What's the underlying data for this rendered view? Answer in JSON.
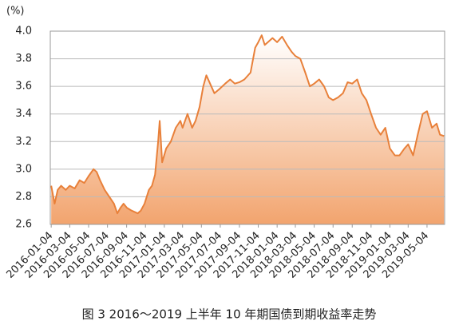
{
  "chart_data": {
    "type": "line",
    "title": "图 3 2016～2019 上半年 10 年期国债到期收益率走势",
    "y_label": "(%)",
    "color": "#e8803a",
    "grid": true,
    "x": [
      "2016-01-04",
      "2016-01-15",
      "2016-01-25",
      "2016-02-05",
      "2016-02-20",
      "2016-03-04",
      "2016-03-20",
      "2016-04-05",
      "2016-04-20",
      "2016-05-04",
      "2016-05-20",
      "2016-05-30",
      "2016-06-10",
      "2016-06-25",
      "2016-07-10",
      "2016-07-25",
      "2016-08-05",
      "2016-08-15",
      "2016-08-25",
      "2016-09-05",
      "2016-09-20",
      "2016-10-10",
      "2016-10-20",
      "2016-11-01",
      "2016-11-15",
      "2016-11-25",
      "2016-12-05",
      "2016-12-15",
      "2016-12-20",
      "2016-12-28",
      "2017-01-10",
      "2017-01-25",
      "2017-02-10",
      "2017-02-25",
      "2017-03-04",
      "2017-03-20",
      "2017-04-04",
      "2017-04-15",
      "2017-04-28",
      "2017-05-10",
      "2017-05-20",
      "2017-06-01",
      "2017-06-15",
      "2017-07-01",
      "2017-07-20",
      "2017-08-05",
      "2017-08-20",
      "2017-09-04",
      "2017-09-20",
      "2017-10-10",
      "2017-10-25",
      "2017-11-04",
      "2017-11-15",
      "2017-11-25",
      "2017-12-05",
      "2017-12-20",
      "2018-01-04",
      "2018-01-20",
      "2018-02-05",
      "2018-02-20",
      "2018-03-04",
      "2018-03-20",
      "2018-04-05",
      "2018-04-20",
      "2018-05-04",
      "2018-05-20",
      "2018-06-05",
      "2018-06-20",
      "2018-07-04",
      "2018-07-20",
      "2018-08-05",
      "2018-08-20",
      "2018-09-04",
      "2018-09-20",
      "2018-10-05",
      "2018-10-20",
      "2018-11-04",
      "2018-11-20",
      "2018-12-05",
      "2018-12-20",
      "2019-01-04",
      "2019-01-20",
      "2019-02-04",
      "2019-02-20",
      "2019-03-04",
      "2019-03-20",
      "2019-04-04",
      "2019-04-20",
      "2019-05-04",
      "2019-05-20",
      "2019-06-04",
      "2019-06-15",
      "2019-06-28"
    ],
    "values": [
      2.88,
      2.75,
      2.85,
      2.88,
      2.85,
      2.88,
      2.86,
      2.92,
      2.9,
      2.95,
      3.0,
      2.98,
      2.92,
      2.85,
      2.8,
      2.75,
      2.68,
      2.72,
      2.75,
      2.72,
      2.7,
      2.68,
      2.7,
      2.75,
      2.85,
      2.88,
      2.96,
      3.2,
      3.35,
      3.05,
      3.15,
      3.2,
      3.3,
      3.35,
      3.3,
      3.4,
      3.3,
      3.35,
      3.45,
      3.6,
      3.68,
      3.62,
      3.55,
      3.58,
      3.62,
      3.65,
      3.62,
      3.63,
      3.65,
      3.7,
      3.88,
      3.92,
      3.97,
      3.9,
      3.92,
      3.95,
      3.92,
      3.96,
      3.9,
      3.85,
      3.82,
      3.8,
      3.7,
      3.6,
      3.62,
      3.65,
      3.6,
      3.52,
      3.5,
      3.52,
      3.55,
      3.63,
      3.62,
      3.65,
      3.55,
      3.5,
      3.4,
      3.3,
      3.25,
      3.3,
      3.15,
      3.1,
      3.1,
      3.15,
      3.18,
      3.1,
      3.25,
      3.4,
      3.42,
      3.3,
      3.33,
      3.25,
      3.24
    ],
    "xlim": [
      "2016-01-01",
      "2019-06-30"
    ],
    "xticks": [
      "2016-01-04",
      "2016-03-04",
      "2016-05-04",
      "2016-07-04",
      "2016-09-04",
      "2016-11-04",
      "2017-01-04",
      "2017-03-04",
      "2017-05-04",
      "2017-07-04",
      "2017-09-04",
      "2017-11-04",
      "2018-01-04",
      "2018-03-04",
      "2018-05-04",
      "2018-07-04",
      "2018-09-04",
      "2018-11-04",
      "2019-01-04",
      "2019-03-04",
      "2019-05-04"
    ],
    "ylim": [
      2.6,
      4.0
    ],
    "yticks": [
      2.6,
      2.8,
      {
        "value": 3,
        "label": "3.0"
      },
      3.2,
      3.4,
      3.6,
      3.8,
      {
        "value": 4,
        "label": "4.0"
      }
    ]
  }
}
